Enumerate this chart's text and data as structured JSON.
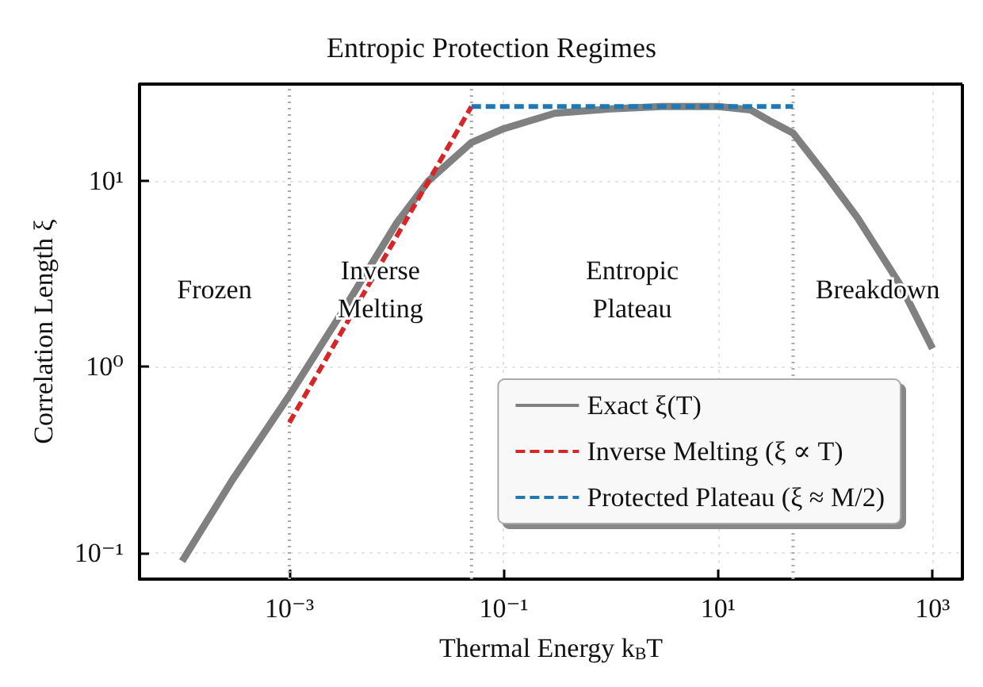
{
  "chart_data": {
    "type": "line",
    "title": "Entropic Protection Regimes",
    "xlabel": "Thermal Energy k$_{B}$T",
    "ylabel": "Correlation Length ξ",
    "log": "xy",
    "grid": true,
    "legend": "bottom right",
    "marker": "none",
    "xlim": [
      4e-05,
      1900
    ],
    "ylim": [
      0.072,
      33
    ],
    "xticks": [
      {
        "value": 0.001,
        "label": "10⁻³"
      },
      {
        "value": 0.1,
        "label": "10⁻¹"
      },
      {
        "value": 10,
        "label": "10¹"
      },
      {
        "value": 1000,
        "label": "10³"
      }
    ],
    "yticks": [
      {
        "value": 0.1,
        "label": "10⁻¹"
      },
      {
        "value": 1,
        "label": "10⁰"
      },
      {
        "value": 10,
        "label": "10¹"
      }
    ],
    "series": [
      {
        "name": "Exact ξ(T)",
        "color": "#808080",
        "line_style": "solid",
        "x": [
          0.0001,
          0.0003,
          0.001,
          0.003,
          0.01,
          0.02,
          0.05,
          0.1,
          0.3,
          1,
          3,
          10,
          20,
          30,
          50,
          100,
          200,
          500,
          1000
        ],
        "values": [
          0.09,
          0.25,
          0.7,
          1.9,
          5.9,
          10,
          16,
          19,
          23,
          24.3,
          25,
          25,
          24,
          21,
          18,
          10.8,
          6.3,
          2.75,
          1.25
        ]
      },
      {
        "name": "Inverse Melting (ξ ∝ T)",
        "color": "#d62728",
        "line_style": "dashed",
        "x": [
          0.001,
          0.05
        ],
        "values": [
          0.5,
          25
        ]
      },
      {
        "name": "Protected Plateau (ξ ≈ M/2)",
        "color": "#1f77b4",
        "line_style": "dashed",
        "x": [
          0.05,
          50
        ],
        "values": [
          25,
          25
        ]
      }
    ],
    "ref_lines": [
      {
        "axis": "x",
        "value": 0.001,
        "color": "#aaaaaa",
        "line_style": "dotted"
      },
      {
        "axis": "x",
        "value": 0.05,
        "color": "#aaaaaa",
        "line_style": "dotted"
      },
      {
        "axis": "x",
        "value": 50,
        "color": "#aaaaaa",
        "line_style": "dotted"
      }
    ],
    "annotations": [
      "Frozen",
      "Inverse\nMelting",
      "Entropic\nPlateau",
      "Breakdown"
    ]
  }
}
